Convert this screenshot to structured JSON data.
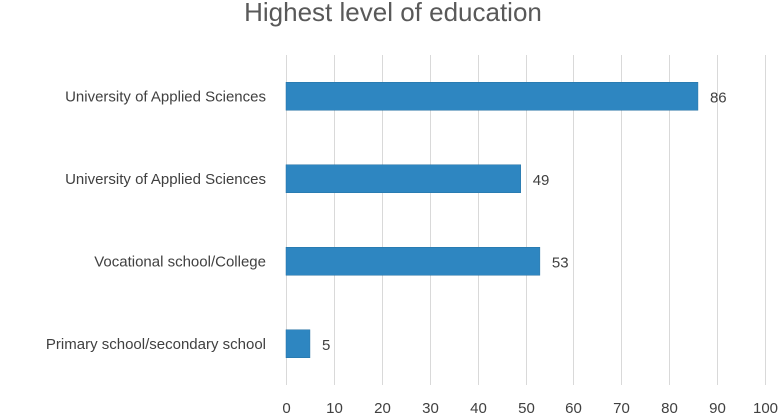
{
  "chart_data": {
    "type": "bar",
    "orientation": "horizontal",
    "title": "Highest level of education",
    "categories": [
      "University of Applied Sciences",
      "University of Applied Sciences",
      "Vocational school/College",
      "Primary school/secondary school"
    ],
    "values": [
      86,
      49,
      53,
      5
    ],
    "xlim": [
      0,
      100
    ],
    "xticks": [
      0,
      10,
      20,
      30,
      40,
      50,
      60,
      70,
      80,
      90,
      100
    ],
    "grid": "vertical",
    "data_labels": true,
    "colors": {
      "bar": "#2e86c1"
    }
  }
}
